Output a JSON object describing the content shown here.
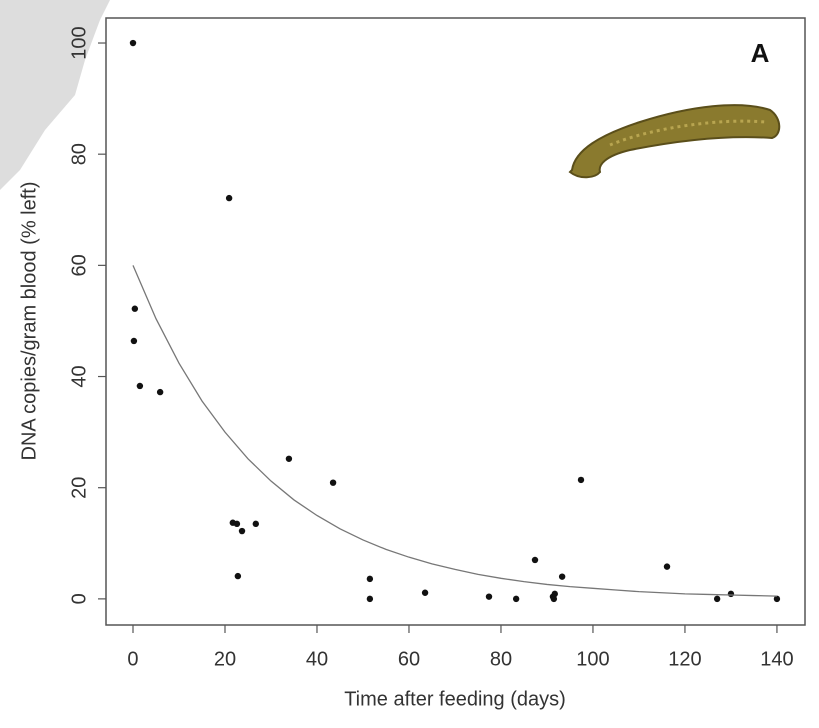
{
  "chart_data": {
    "type": "scatter",
    "panel_label": "A",
    "x_label": "Time after feeding (days)",
    "y_label": "DNA copies/gram blood (% left)",
    "xlim": [
      -5.87,
      146.1
    ],
    "ylim": [
      -4.7,
      104.5
    ],
    "xticks": [
      0,
      20,
      40,
      60,
      80,
      100,
      120,
      140
    ],
    "yticks": [
      0,
      20,
      40,
      60,
      80,
      100
    ],
    "series": [
      {
        "type": "scatter",
        "color": "#111111",
        "x": [
          0,
          20.9,
          0.4,
          0.2,
          1.5,
          5.9,
          33.9,
          43.5,
          97.4,
          21.7,
          22.6,
          23.7,
          26.7,
          22.8,
          51.5,
          51.5,
          63.5,
          77.4,
          83.3,
          87.4,
          91.3,
          91.5,
          91.7,
          93.3,
          116.1,
          127,
          130,
          140
        ],
        "values": [
          100,
          72.1,
          52.2,
          46.4,
          38.3,
          37.2,
          25.2,
          20.9,
          21.4,
          13.7,
          13.5,
          12.2,
          13.5,
          4.1,
          3.6,
          0,
          1.1,
          0.4,
          0,
          7.0,
          0.4,
          0,
          0.9,
          4.0,
          5.8,
          0,
          0.9,
          0
        ]
      },
      {
        "type": "line",
        "color": "#777777",
        "x": [
          0,
          5,
          10,
          15,
          20,
          25,
          30,
          35,
          40,
          45,
          50,
          55,
          60,
          65,
          70,
          75,
          80,
          85,
          90,
          95,
          100,
          105,
          110,
          115,
          120,
          125,
          130,
          135,
          140
        ],
        "values": [
          60,
          50.4,
          42.4,
          35.6,
          30.0,
          25.2,
          21.2,
          17.8,
          15.0,
          12.6,
          10.6,
          8.9,
          7.5,
          6.3,
          5.3,
          4.4,
          3.7,
          3.1,
          2.6,
          2.2,
          1.9,
          1.6,
          1.3,
          1.1,
          0.9,
          0.8,
          0.7,
          0.6,
          0.5
        ]
      }
    ]
  }
}
